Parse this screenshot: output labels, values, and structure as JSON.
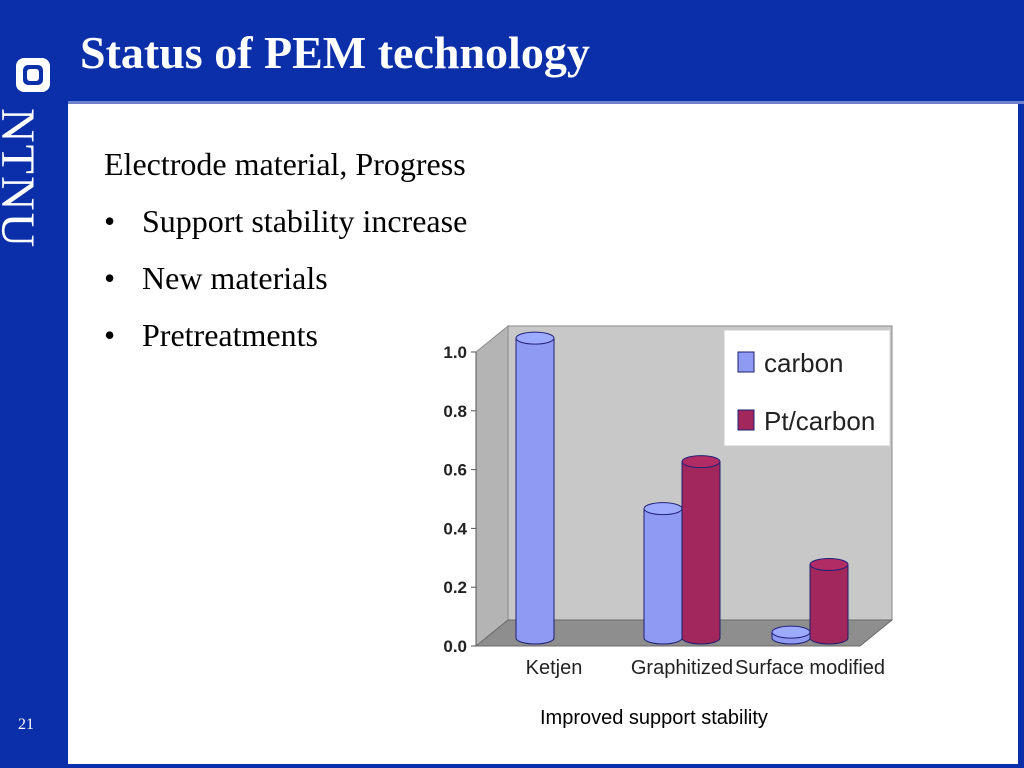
{
  "slide": {
    "title": "Status of PEM technology",
    "logo_text": "NTNU",
    "page_number": "21",
    "heading": "Electrode material, Progress",
    "bullets": [
      "Support stability increase",
      "New materials",
      "Pretreatments"
    ],
    "caption": "Improved support stability"
  },
  "colors": {
    "brand_blue": "#0b2fa8",
    "carbon": "#8f9bf2",
    "pt_carbon": "#a1275c"
  },
  "chart_data": {
    "type": "bar",
    "categories": [
      "Ketjen",
      "Graphitized",
      "Surface modified"
    ],
    "series": [
      {
        "name": "carbon",
        "values": [
          1.02,
          0.44,
          0.02
        ]
      },
      {
        "name": "Pt/carbon",
        "values": [
          null,
          0.6,
          0.25
        ]
      }
    ],
    "y_ticks": [
      "0.0",
      "0.2",
      "0.4",
      "0.6",
      "0.8",
      "1.0"
    ],
    "ylim": [
      0,
      1.0
    ],
    "legend_position": "top-right",
    "grid": false
  }
}
